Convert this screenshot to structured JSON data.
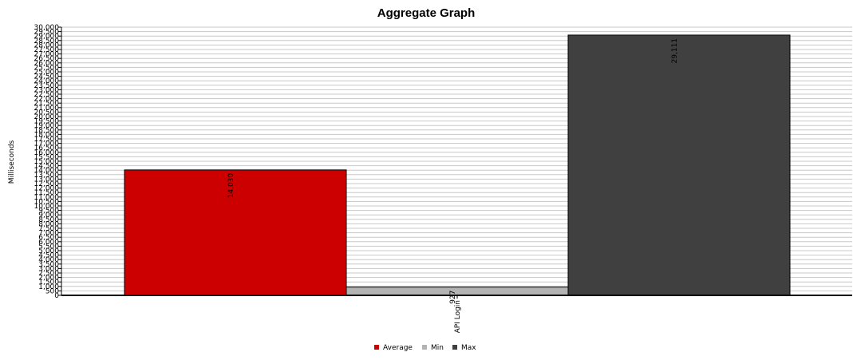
{
  "chart_data": {
    "type": "bar",
    "title": "Aggregate Graph",
    "xlabel": "",
    "ylabel": "Milliseconds",
    "categories": [
      "API Login"
    ],
    "series": [
      {
        "name": "Average",
        "values": [
          14030
        ],
        "color": "#cc0000"
      },
      {
        "name": "Min",
        "values": [
          927
        ],
        "color": "#b3b3b3"
      },
      {
        "name": "Max",
        "values": [
          29111
        ],
        "color": "#404040"
      }
    ],
    "data_labels": [
      "14,030",
      "927",
      "29,111"
    ],
    "ylim": [
      0,
      30000
    ],
    "yticks": [
      0,
      500,
      1000,
      1500,
      2000,
      2500,
      3000,
      3500,
      4000,
      4500,
      5000,
      5500,
      6000,
      6500,
      7000,
      7500,
      8000,
      8500,
      9000,
      9500,
      10000,
      10500,
      11000,
      11500,
      12000,
      12500,
      13000,
      13500,
      14000,
      14500,
      15000,
      15500,
      16000,
      16500,
      17000,
      17500,
      18000,
      18500,
      19000,
      19500,
      20000,
      20500,
      21000,
      21500,
      22000,
      22500,
      23000,
      23500,
      24000,
      24500,
      25000,
      25500,
      26000,
      26500,
      27000,
      27500,
      28000,
      28500,
      29000,
      29500,
      30000
    ],
    "ytick_labels": [
      "0",
      "500",
      "1,000",
      "1,500",
      "2,000",
      "2,500",
      "3,000",
      "3,500",
      "4,000",
      "4,500",
      "5,000",
      "5,500",
      "6,000",
      "6,500",
      "7,000",
      "7,500",
      "8,000",
      "8,500",
      "9,000",
      "9,500",
      "10,000",
      "10,500",
      "11,000",
      "11,500",
      "12,000",
      "12,500",
      "13,000",
      "13,500",
      "14,000",
      "14,500",
      "15,000",
      "15,500",
      "16,000",
      "16,500",
      "17,000",
      "17,500",
      "18,000",
      "18,500",
      "19,000",
      "19,500",
      "20,000",
      "20,500",
      "21,000",
      "21,500",
      "22,000",
      "22,500",
      "23,000",
      "23,500",
      "24,000",
      "24,500",
      "25,000",
      "25,500",
      "26,000",
      "26,500",
      "27,000",
      "27,500",
      "28,000",
      "28,500",
      "29,000",
      "29,500",
      "30,000"
    ],
    "grid": true,
    "legend": "bottom-center"
  }
}
